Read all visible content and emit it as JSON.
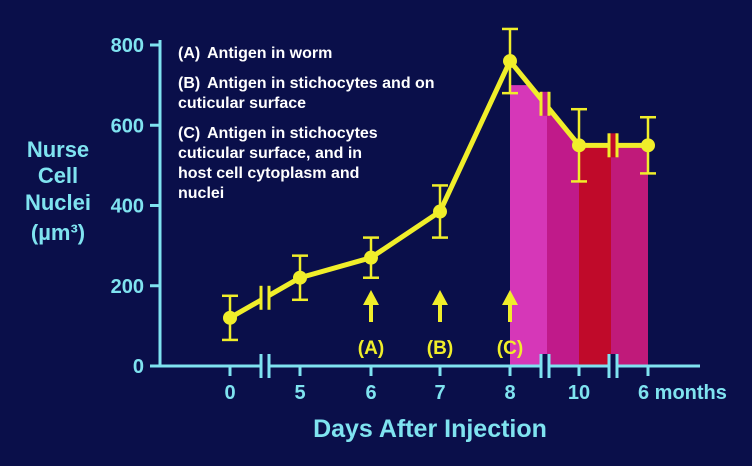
{
  "chart_data": {
    "type": "line",
    "ylabel_lines": [
      "Nurse",
      "Cell",
      "Nuclei"
    ],
    "ylabel_unit": "(µm³)",
    "xlabel": "Days After Injection",
    "ylim": [
      0,
      800
    ],
    "y_ticks": [
      0,
      200,
      400,
      600,
      800
    ],
    "x_tick_labels": [
      "0",
      "5",
      "6",
      "7",
      "8",
      "10",
      "6 months"
    ],
    "axis_breaks": "between 0 and 5, after 8, after 10",
    "points": [
      {
        "x": "0",
        "y": 120,
        "err": 55
      },
      {
        "x": "5",
        "y": 220,
        "err": 55
      },
      {
        "x": "6",
        "y": 270,
        "err": 50
      },
      {
        "x": "7",
        "y": 385,
        "err": 65
      },
      {
        "x": "8",
        "y": 760,
        "err": 80
      },
      {
        "x": "10",
        "y": 550,
        "err": 90
      },
      {
        "x": "6 months",
        "y": 550,
        "err": 70
      }
    ],
    "markers": [
      {
        "x": "6",
        "label": "(A)"
      },
      {
        "x": "7",
        "label": "(B)"
      },
      {
        "x": "8",
        "label": "(C)"
      }
    ],
    "legend": [
      {
        "key": "(A)",
        "lines": [
          "Antigen in worm"
        ]
      },
      {
        "key": "(B)",
        "lines": [
          "Antigen in stichocytes and on",
          "cuticular surface"
        ]
      },
      {
        "key": "(C)",
        "lines": [
          "Antigen in stichocytes",
          "cuticular surface, and in",
          "host cell cytoplasm and",
          "nuclei"
        ]
      }
    ],
    "shaded_regions": [
      {
        "from": "8",
        "to": "8-10 break",
        "color": "#d637b8"
      },
      {
        "from": "8-10 break",
        "to": "10",
        "color": "#c01a8a"
      },
      {
        "from": "10",
        "to": "10-6m break",
        "color": "#c00a2a"
      },
      {
        "from": "10-6m break",
        "to": "6 months",
        "color": "#c01a7a"
      }
    ],
    "colors": {
      "axis": "#7fe3f0",
      "line": "#f0ee2a",
      "background": "#0a0f4a"
    }
  }
}
